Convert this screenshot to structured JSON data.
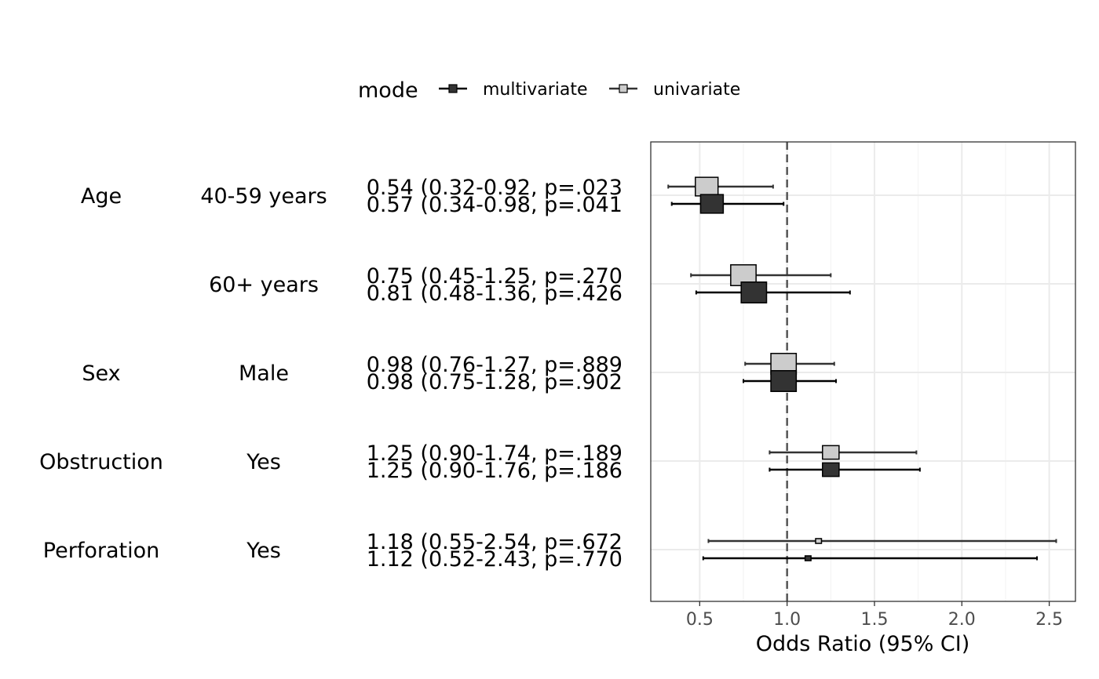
{
  "chart_data": {
    "type": "forest",
    "xlabel": "Odds Ratio (95% CI)",
    "xlim": [
      0.22,
      2.65
    ],
    "x_ticks": [
      0.5,
      1.0,
      1.5,
      2.0,
      2.5
    ],
    "x_tick_labels": [
      "0.5",
      "1.0",
      "1.5",
      "2.0",
      "2.5"
    ],
    "reference_line": 1.0,
    "grid": true,
    "legend": {
      "title": "mode",
      "placement": "top",
      "entries": [
        {
          "name": "multivariate",
          "color": "#333333"
        },
        {
          "name": "univariate",
          "color": "#cccccc"
        }
      ]
    },
    "rows": [
      {
        "variable": "Age",
        "level": "40-59 years",
        "univariate": {
          "or": 0.54,
          "lo": 0.32,
          "hi": 0.92,
          "label": "0.54 (0.32-0.92, p=.023",
          "weight": 0.85
        },
        "multivariate": {
          "or": 0.57,
          "lo": 0.34,
          "hi": 0.98,
          "label": "0.57 (0.34-0.98, p=.041",
          "weight": 0.85
        }
      },
      {
        "variable": "",
        "level": "60+ years",
        "univariate": {
          "or": 0.75,
          "lo": 0.45,
          "hi": 1.25,
          "label": "0.75 (0.45-1.25, p=.270",
          "weight": 0.95
        },
        "multivariate": {
          "or": 0.81,
          "lo": 0.48,
          "hi": 1.36,
          "label": "0.81 (0.48-1.36, p=.426",
          "weight": 0.95
        }
      },
      {
        "variable": "Sex",
        "level": "Male",
        "univariate": {
          "or": 0.98,
          "lo": 0.76,
          "hi": 1.27,
          "label": "0.98 (0.76-1.27, p=.889",
          "weight": 0.95
        },
        "multivariate": {
          "or": 0.98,
          "lo": 0.75,
          "hi": 1.28,
          "label": "0.98 (0.75-1.28, p=.902",
          "weight": 0.95
        }
      },
      {
        "variable": "Obstruction",
        "level": "Yes",
        "univariate": {
          "or": 1.25,
          "lo": 0.9,
          "hi": 1.74,
          "label": "1.25 (0.90-1.74, p=.189",
          "weight": 0.62
        },
        "multivariate": {
          "or": 1.25,
          "lo": 0.9,
          "hi": 1.76,
          "label": "1.25 (0.90-1.76, p=.186",
          "weight": 0.62
        }
      },
      {
        "variable": "Perforation",
        "level": "Yes",
        "univariate": {
          "or": 1.18,
          "lo": 0.55,
          "hi": 2.54,
          "label": "1.18 (0.55-2.54, p=.672",
          "weight": 0.22
        },
        "multivariate": {
          "or": 1.12,
          "lo": 0.52,
          "hi": 2.43,
          "label": "1.12 (0.52-2.43, p=.770",
          "weight": 0.22
        }
      }
    ]
  }
}
